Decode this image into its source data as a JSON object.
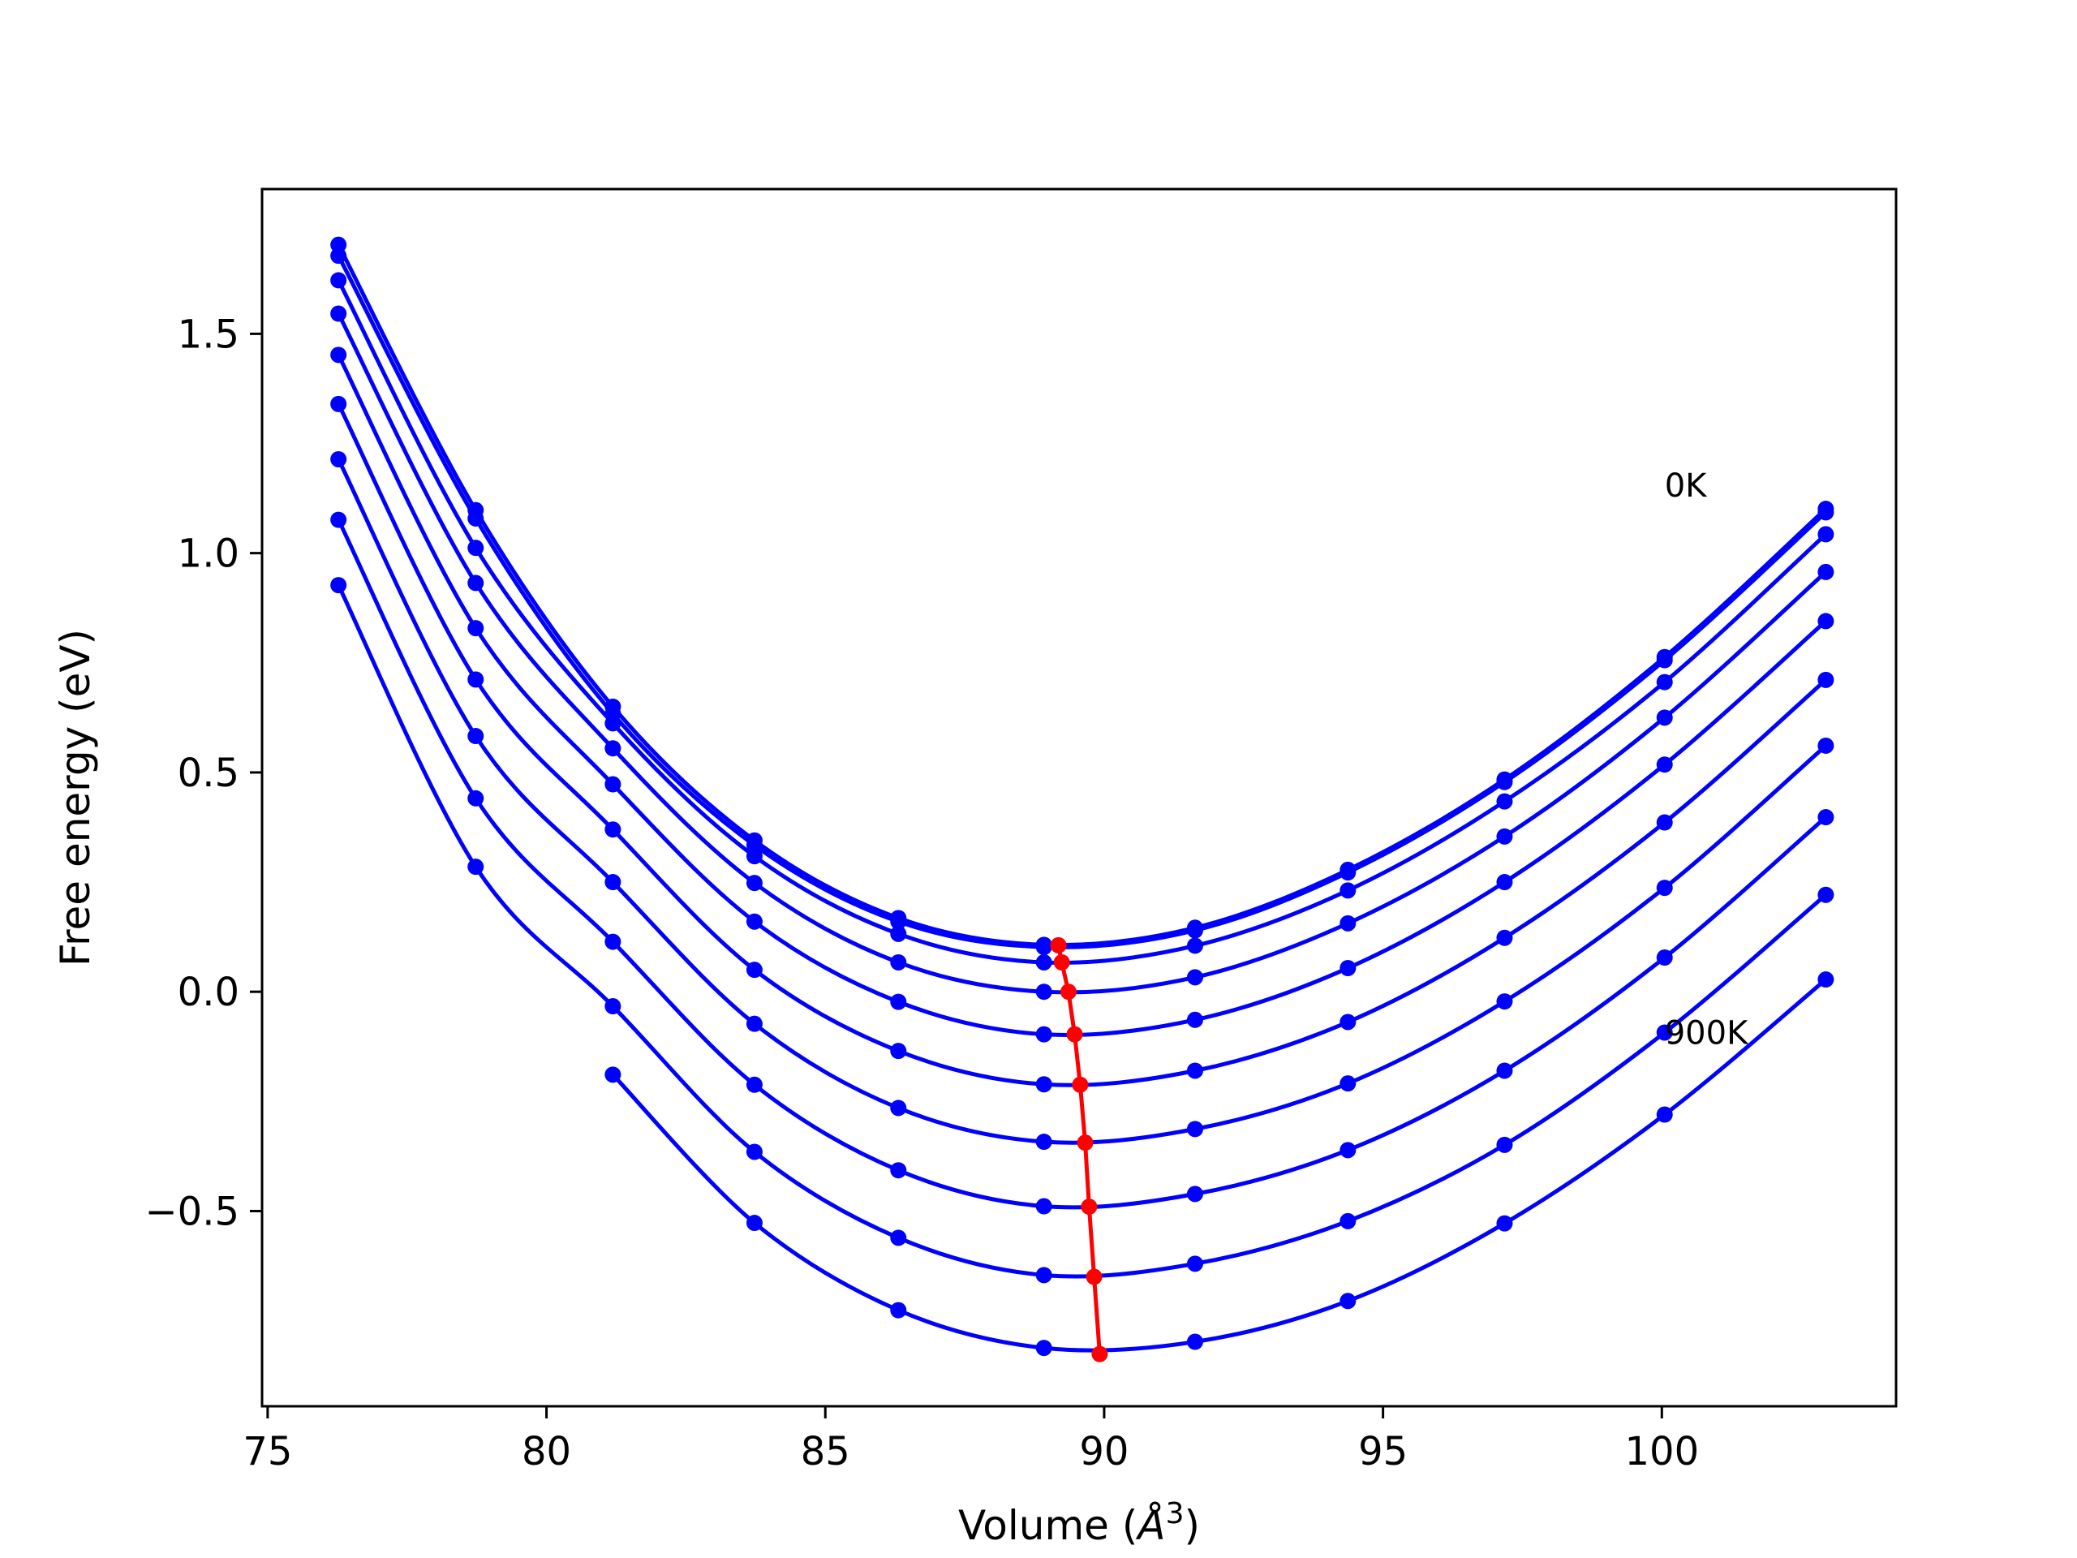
{
  "chart_data": {
    "type": "line",
    "title": "",
    "xlabel_text": "Volume (",
    "xlabel_symbol": "Å",
    "xlabel_exponent": "3",
    "xlabel_close": ")",
    "ylabel": "Free energy (eV)",
    "xlim": [
      74.9,
      104.2
    ],
    "ylim": [
      -0.945,
      1.83
    ],
    "xticks": [
      75,
      80,
      85,
      90,
      95,
      100
    ],
    "yticks": [
      -0.5,
      0.0,
      0.5,
      1.0,
      1.5
    ],
    "ytick_labels": [
      "−0.5",
      "0.0",
      "0.5",
      "1.0",
      "1.5"
    ],
    "grid": false,
    "legend": "none",
    "series_color": "#0000ff",
    "min_line_color": "#ff0000",
    "x": [
      76.27,
      78.73,
      81.19,
      83.73,
      86.31,
      88.92,
      91.63,
      94.37,
      97.18,
      100.05,
      102.94
    ],
    "series": [
      {
        "values": [
          1.703,
          1.098,
          0.65,
          0.345,
          0.168,
          0.107,
          0.146,
          0.278,
          0.484,
          0.763,
          1.101
        ]
      },
      {
        "values": [
          1.678,
          1.079,
          0.634,
          0.334,
          0.16,
          0.102,
          0.14,
          0.272,
          0.478,
          0.756,
          1.093
        ]
      },
      {
        "values": [
          1.622,
          1.012,
          0.612,
          0.309,
          0.132,
          0.067,
          0.105,
          0.231,
          0.434,
          0.706,
          1.043
        ]
      },
      {
        "values": [
          1.546,
          0.932,
          0.555,
          0.248,
          0.067,
          0.0,
          0.033,
          0.156,
          0.354,
          0.625,
          0.957
        ]
      },
      {
        "values": [
          1.452,
          0.829,
          0.473,
          0.16,
          -0.023,
          -0.097,
          -0.064,
          0.054,
          0.25,
          0.518,
          0.845
        ]
      },
      {
        "values": [
          1.34,
          0.712,
          0.37,
          0.05,
          -0.135,
          -0.211,
          -0.18,
          -0.069,
          0.123,
          0.386,
          0.711
        ]
      },
      {
        "values": [
          1.214,
          0.583,
          0.25,
          -0.073,
          -0.265,
          -0.342,
          -0.313,
          -0.209,
          -0.022,
          0.237,
          0.561
        ]
      },
      {
        "values": [
          1.076,
          0.441,
          0.114,
          -0.212,
          -0.407,
          -0.489,
          -0.461,
          -0.361,
          -0.18,
          0.078,
          0.398
        ]
      },
      {
        "values": [
          0.927,
          0.285,
          -0.033,
          -0.365,
          -0.561,
          -0.646,
          -0.62,
          -0.523,
          -0.349,
          -0.093,
          0.221
        ]
      },
      {
        "values": [
          null,
          null,
          -0.189,
          -0.527,
          -0.726,
          -0.812,
          -0.798,
          -0.705,
          -0.528,
          -0.28,
          0.028
        ]
      }
    ],
    "minimum_line": {
      "x": [
        89.18,
        89.24,
        89.36,
        89.47,
        89.57,
        89.66,
        89.73,
        89.82,
        89.92
      ],
      "y": [
        0.106,
        0.067,
        0.0,
        -0.097,
        -0.212,
        -0.344,
        -0.49,
        -0.65,
        -0.826
      ]
    },
    "annotations": [
      {
        "text": "0K",
        "x": 100.05,
        "y": 1.155
      },
      {
        "text": "900K",
        "x": 100.05,
        "y": -0.093
      }
    ]
  }
}
